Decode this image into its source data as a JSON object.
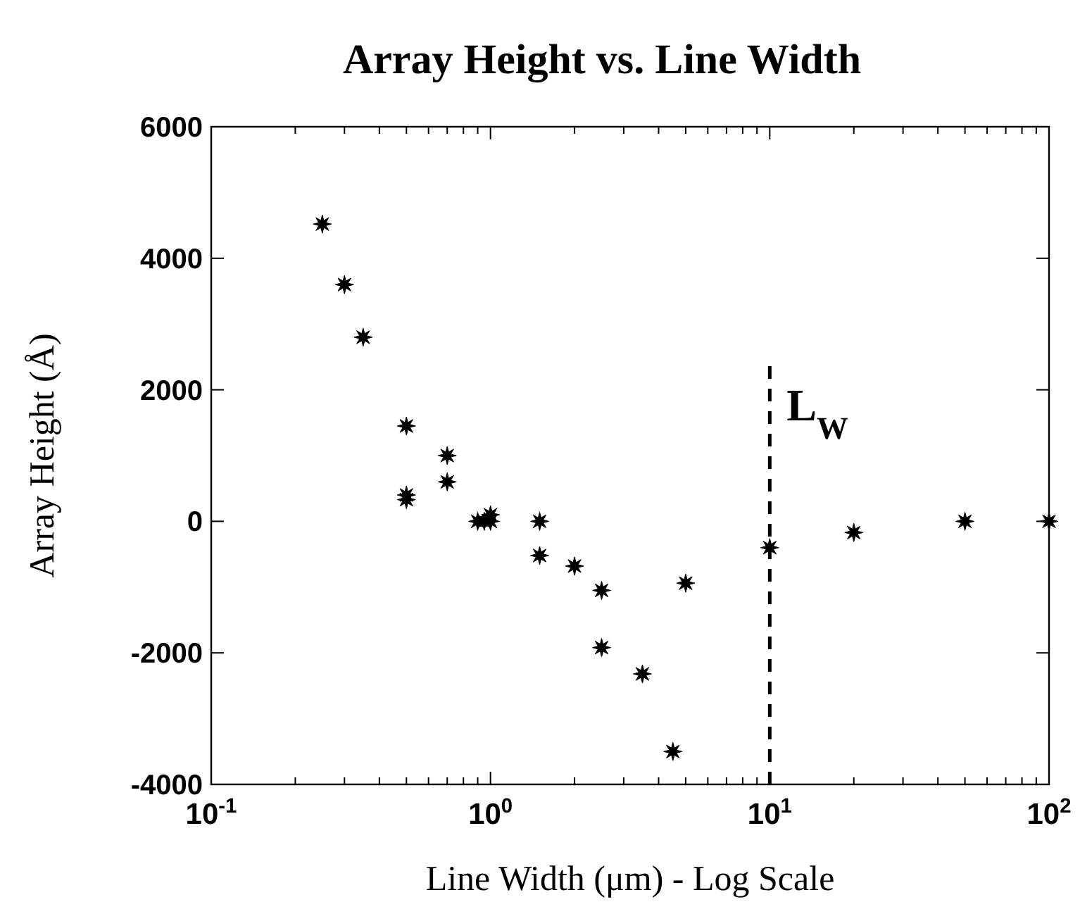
{
  "chart_data": {
    "type": "scatter",
    "title": "Array Height vs. Line Width",
    "xlabel": "Line Width (μm) - Log Scale",
    "ylabel": "Array Height (Å)",
    "log": "x",
    "marker": "star",
    "grid": false,
    "xlim": [
      0.1,
      100
    ],
    "xticks": [
      {
        "value": 0.1,
        "label": "10$^{-1}$"
      },
      {
        "value": 1,
        "label": "10$^{0}$"
      },
      {
        "value": 10,
        "label": "10$^{1}$"
      },
      {
        "value": 100,
        "label": "10$^{2}$"
      }
    ],
    "ylim": [
      -4000,
      6000
    ],
    "yticks": [
      -4000,
      -2000,
      0,
      2000,
      4000,
      6000
    ],
    "series": [
      {
        "color": "#000000",
        "x": [
          0.25,
          0.3,
          0.35,
          0.5,
          0.5,
          0.5,
          0.7,
          0.7,
          0.9,
          0.95,
          1.0,
          1.0,
          1.5,
          1.5,
          2,
          2.5,
          2.5,
          3.5,
          4.5,
          5,
          10,
          20,
          50,
          100
        ],
        "values": [
          4520,
          3600,
          2800,
          1450,
          400,
          330,
          1000,
          600,
          0,
          0,
          100,
          0,
          0,
          -520,
          -680,
          -1050,
          -1920,
          -2320,
          -3500,
          -940,
          -400,
          -170,
          0,
          0
        ]
      }
    ],
    "ref_lines": [
      {
        "axis": "x",
        "value": 10,
        "label": "L$_{W}$",
        "line_style": "dashed",
        "color": "#000000"
      }
    ]
  }
}
